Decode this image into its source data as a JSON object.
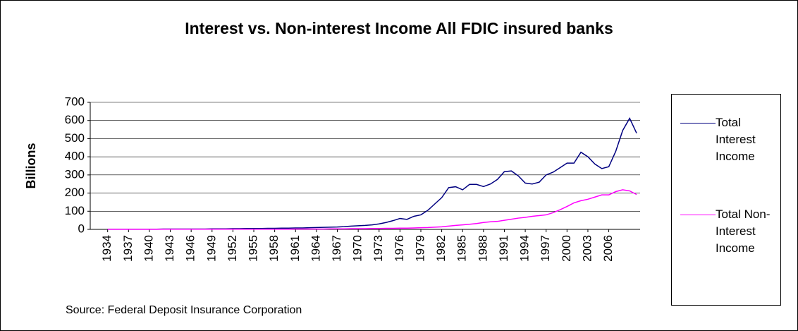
{
  "chart_data": {
    "type": "line",
    "title": "Interest vs. Non-interest Income All FDIC insured banks",
    "y_label": "Billions",
    "source": "Source: Federal Deposit Insurance Corporation",
    "x": [
      1934,
      1935,
      1936,
      1937,
      1938,
      1939,
      1940,
      1941,
      1942,
      1943,
      1944,
      1945,
      1946,
      1947,
      1948,
      1949,
      1950,
      1951,
      1952,
      1953,
      1954,
      1955,
      1956,
      1957,
      1958,
      1959,
      1960,
      1961,
      1962,
      1963,
      1964,
      1965,
      1966,
      1967,
      1968,
      1969,
      1970,
      1971,
      1972,
      1973,
      1974,
      1975,
      1976,
      1977,
      1978,
      1979,
      1980,
      1981,
      1982,
      1983,
      1984,
      1985,
      1986,
      1987,
      1988,
      1989,
      1990,
      1991,
      1992,
      1993,
      1994,
      1995,
      1996,
      1997,
      1998,
      1999,
      2000,
      2001,
      2002,
      2003,
      2004,
      2005,
      2006,
      2007,
      2008,
      2009,
      2010
    ],
    "series": [
      {
        "name": "Total Interest Income",
        "color": "#000080",
        "values": [
          1,
          1,
          1,
          1,
          1,
          1,
          1,
          1,
          2,
          2,
          2,
          2,
          2,
          2,
          2,
          3,
          3,
          3,
          4,
          4,
          5,
          5,
          5,
          6,
          6,
          7,
          7,
          8,
          8,
          9,
          10,
          11,
          12,
          13,
          15,
          18,
          20,
          22,
          25,
          30,
          38,
          48,
          60,
          55,
          72,
          80,
          105,
          140,
          175,
          230,
          235,
          218,
          248,
          248,
          236,
          250,
          275,
          318,
          322,
          295,
          255,
          250,
          260,
          300,
          315,
          340,
          365,
          365,
          425,
          400,
          360,
          335,
          345,
          430,
          545,
          612,
          530
        ]
      },
      {
        "name": "Total Non-Interest Income",
        "color": "#ff00ff",
        "values": [
          0.5,
          0.5,
          0.5,
          0.5,
          0.5,
          0.5,
          0.5,
          0.5,
          1,
          1,
          1,
          1,
          1,
          1,
          1,
          1,
          1,
          1,
          1,
          1,
          1,
          1,
          1,
          1,
          1,
          1,
          1,
          2,
          2,
          2,
          2,
          2,
          3,
          3,
          3,
          4,
          4,
          4,
          5,
          5,
          6,
          6,
          7,
          7,
          8,
          9,
          10,
          12,
          14,
          18,
          22,
          25,
          28,
          32,
          38,
          42,
          44,
          50,
          56,
          62,
          66,
          72,
          76,
          80,
          92,
          108,
          126,
          146,
          158,
          166,
          178,
          190,
          190,
          208,
          218,
          212,
          192
        ]
      }
    ],
    "xlim": [
      1931.5,
      2010.5
    ],
    "xticks": [
      1934,
      1937,
      1940,
      1943,
      1946,
      1949,
      1952,
      1955,
      1958,
      1961,
      1964,
      1967,
      1970,
      1973,
      1976,
      1979,
      1982,
      1985,
      1988,
      1991,
      1994,
      1997,
      2000,
      2003,
      2006
    ],
    "ylim": [
      0,
      700
    ],
    "yticks": [
      0,
      100,
      200,
      300,
      400,
      500,
      600,
      700
    ],
    "grid": true,
    "legend": "right"
  }
}
